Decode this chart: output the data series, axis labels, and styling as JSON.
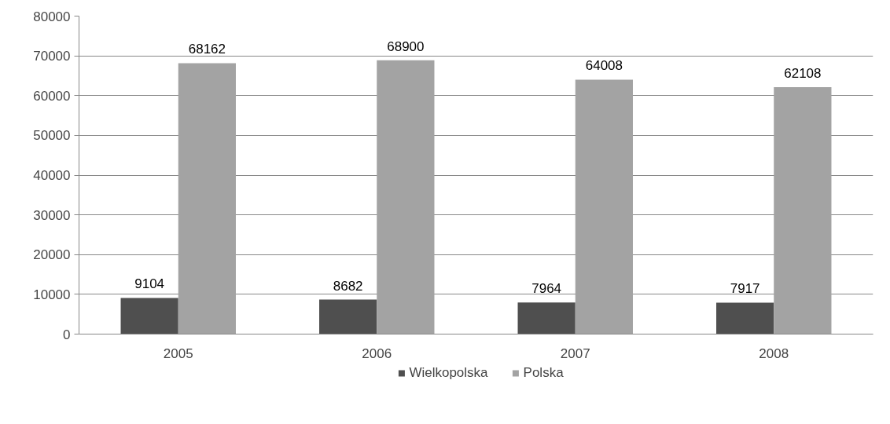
{
  "chart_data": {
    "type": "bar",
    "categories": [
      "2005",
      "2006",
      "2007",
      "2008"
    ],
    "series": [
      {
        "name": "Wielkopolska",
        "color": "#4f4f4f",
        "values": [
          9104,
          8682,
          7964,
          7917
        ]
      },
      {
        "name": "Polska",
        "color": "#a3a3a3",
        "values": [
          68162,
          68900,
          64008,
          62108
        ]
      }
    ],
    "ylim": [
      0,
      80000
    ],
    "yticks": [
      0,
      10000,
      20000,
      30000,
      40000,
      50000,
      60000,
      70000,
      80000
    ],
    "grid": "y",
    "legend": "bottom",
    "data_labels": true
  }
}
